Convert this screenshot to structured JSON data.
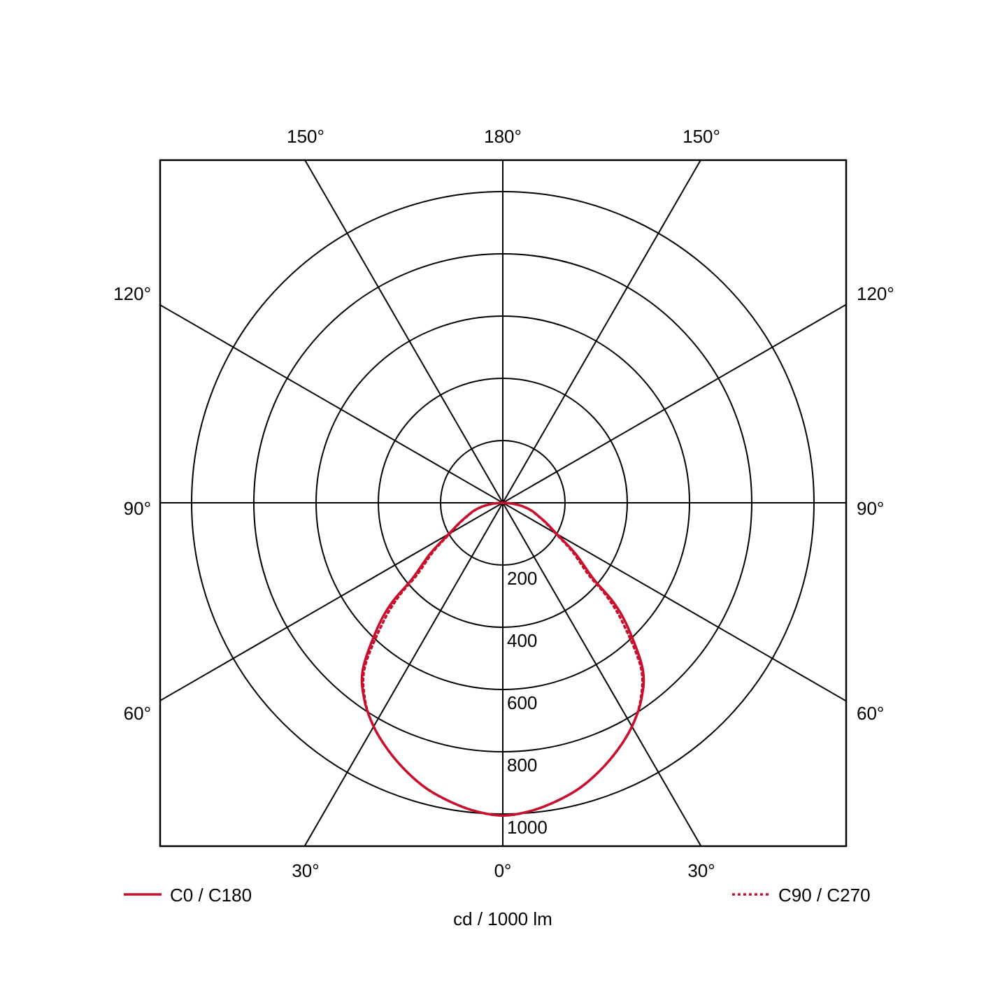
{
  "chart_data": {
    "type": "polar",
    "unit_label": "cd / 1000 lm",
    "radial_ticks": [
      200,
      400,
      600,
      800,
      1000
    ],
    "radial_tick_labels": [
      "200",
      "400",
      "600",
      "800",
      "1000"
    ],
    "radial_max": 1000,
    "angle_labels": {
      "top": [
        "150°",
        "180°",
        "150°"
      ],
      "upper_sides": [
        "120°",
        "120°"
      ],
      "middle_sides": [
        "90°",
        "90°"
      ],
      "lower_sides": [
        "60°",
        "60°"
      ],
      "bottom": [
        "30°",
        "0°",
        "30°"
      ]
    },
    "grid": true,
    "legend_placement": "bottom",
    "colors": {
      "series": "#c8102e",
      "grid": "#000000"
    },
    "gamma": [
      0,
      5,
      10,
      15,
      20,
      25,
      30,
      35,
      40,
      45,
      48,
      50,
      55,
      60,
      65,
      70,
      75,
      80,
      85,
      90
    ],
    "series": [
      {
        "name": "C0 / C180",
        "style": "solid",
        "values": [
          1005,
          995,
          975,
          950,
          915,
          875,
          830,
          775,
          700,
          570,
          480,
          380,
          285,
          200,
          155,
          120,
          95,
          65,
          30,
          0
        ]
      },
      {
        "name": "C90 / C270",
        "style": "dotted",
        "values": [
          1005,
          995,
          975,
          950,
          915,
          875,
          830,
          772,
          690,
          545,
          450,
          360,
          272,
          195,
          152,
          118,
          93,
          63,
          30,
          0
        ]
      }
    ]
  }
}
